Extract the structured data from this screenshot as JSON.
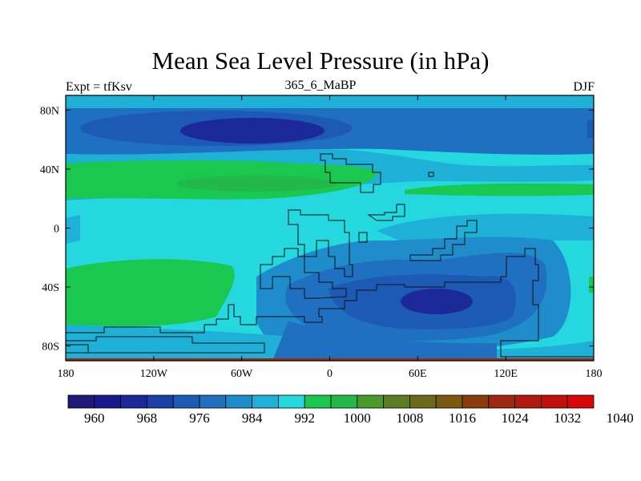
{
  "title": "Mean Sea Level Pressure (in hPa)",
  "left_string": "Expt = tfKsv",
  "center_string": "365_6_MaBP",
  "right_string": "DJF",
  "lon_ticks": [
    "180",
    "120W",
    "60W",
    "0",
    "60E",
    "120E",
    "180"
  ],
  "lat_ticks": [
    "80N",
    "40N",
    "0",
    "40S",
    "80S"
  ],
  "colorbar": {
    "labels": [
      "960",
      "968",
      "976",
      "984",
      "992",
      "1000",
      "1008",
      "1016",
      "1024",
      "1032",
      "1040"
    ],
    "colors": [
      "#1f1a7a",
      "#1a1a8c",
      "#1b2a98",
      "#1c3fa6",
      "#1d5ab5",
      "#1f70c0",
      "#1f8ccc",
      "#1fb0d8",
      "#25d8e0",
      "#1ac850",
      "#22b84a",
      "#4a9a2a",
      "#5c7e20",
      "#6a6a18",
      "#7a5a10",
      "#8c3c0c",
      "#9c2a10",
      "#b01a10",
      "#c01008",
      "#d80808"
    ]
  },
  "chart_data": {
    "type": "heatmap",
    "title": "Mean Sea Level Pressure (in hPa)",
    "subtitle": "365_6_MaBP",
    "left_string": "Expt = tfKsv",
    "season": "DJF",
    "units": "hPa",
    "x_range": [
      -180,
      180
    ],
    "y_range": [
      -90,
      90
    ],
    "levels": [
      960,
      964,
      968,
      972,
      976,
      980,
      984,
      988,
      992,
      996,
      1000,
      1004,
      1008,
      1012,
      1016,
      1020,
      1024,
      1028,
      1032,
      1036,
      1040
    ],
    "features": [
      {
        "name": "northern-low-belt",
        "lat": 70,
        "approx_hPa": 976
      },
      {
        "name": "northern-high-ridge",
        "lat": 33,
        "approx_hPa": 1008
      },
      {
        "name": "southern-high-ridge",
        "lat": -35,
        "approx_hPa": 1004
      },
      {
        "name": "southern-low",
        "lat": -50,
        "lon": 70,
        "approx_hPa": 976
      }
    ]
  }
}
